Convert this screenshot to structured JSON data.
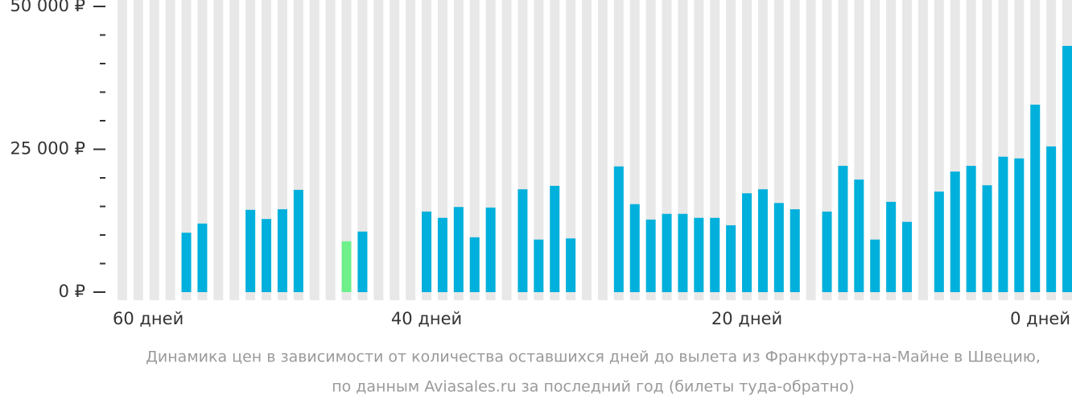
{
  "chart_data": {
    "type": "bar",
    "caption": [
      "Динамика цен в зависимости от количества оставшихся дней до вылета из Франкфурта-на-Майне в Швецию,",
      "по данным Aviasales.ru за последний год (билеты туда-обратно)"
    ],
    "x": [
      59,
      58,
      57,
      56,
      55,
      54,
      53,
      52,
      51,
      50,
      49,
      48,
      47,
      46,
      45,
      44,
      43,
      42,
      41,
      40,
      39,
      38,
      37,
      36,
      35,
      34,
      33,
      32,
      31,
      30,
      29,
      28,
      27,
      26,
      25,
      24,
      23,
      22,
      21,
      20,
      19,
      18,
      17,
      16,
      15,
      14,
      13,
      12,
      11,
      10,
      9,
      8,
      7,
      6,
      5,
      4,
      3,
      2,
      1,
      0
    ],
    "values": [
      null,
      null,
      null,
      null,
      10400,
      12000,
      null,
      null,
      14400,
      12800,
      14500,
      17900,
      null,
      null,
      8900,
      10600,
      null,
      null,
      null,
      14100,
      13000,
      14900,
      9600,
      14800,
      null,
      18000,
      9200,
      18600,
      9400,
      null,
      null,
      22000,
      15400,
      12700,
      13700,
      13700,
      13000,
      13000,
      11700,
      17300,
      18000,
      15600,
      14500,
      null,
      14100,
      22100,
      19700,
      9200,
      15800,
      12300,
      null,
      17600,
      21100,
      22100,
      18700,
      23700,
      23400,
      32800,
      25500,
      43100
    ],
    "color": "#00b0dc",
    "min_color": "#6ef08a",
    "slot_color": "#e8e8e8",
    "xlim": [
      59.6,
      -0.3
    ],
    "xticks": [
      {
        "value": 60,
        "label": "60 дней"
      },
      {
        "value": 40,
        "label": "40 дней"
      },
      {
        "value": 20,
        "label": "20 дней"
      },
      {
        "value": 0,
        "label": "0 дней"
      }
    ],
    "ylim": [
      0,
      50000
    ],
    "yticks": [
      {
        "value": 0,
        "label": "0 ₽"
      },
      {
        "value": 25000,
        "label": "25 000 ₽"
      },
      {
        "value": 50000,
        "label": "50 000 ₽"
      }
    ],
    "yminor_ticks": [
      5000,
      10000,
      15000,
      20000,
      30000,
      35000,
      40000,
      45000
    ]
  }
}
